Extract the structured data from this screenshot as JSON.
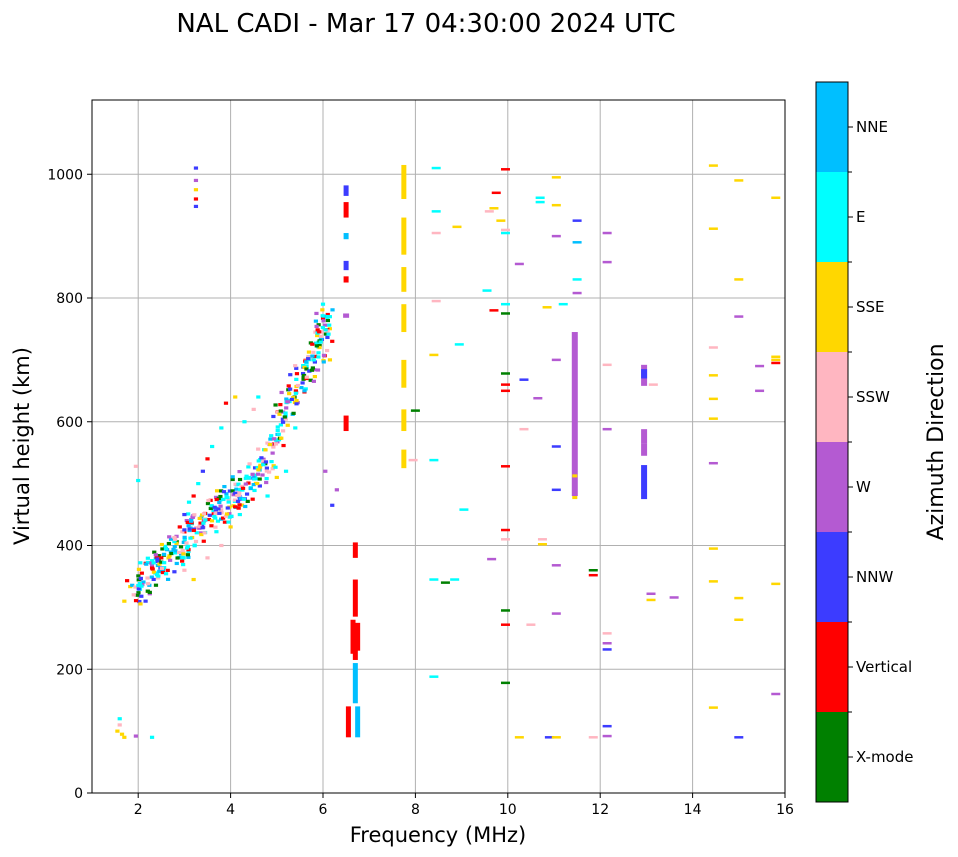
{
  "chart_data": {
    "type": "scatter",
    "title": "NAL CADI - Mar 17 04:30:00 2024 UTC",
    "xlabel": "Frequency (MHz)",
    "ylabel": "Virtual height (km)",
    "xlim": [
      1,
      16
    ],
    "ylim": [
      0,
      1120
    ],
    "xticks": [
      2,
      4,
      6,
      8,
      10,
      12,
      14,
      16
    ],
    "yticks": [
      0,
      200,
      400,
      600,
      800,
      1000
    ],
    "grid": true,
    "colorbar": {
      "label": "Azimuth Direction",
      "categories": [
        {
          "name": "X-mode",
          "color": "#008000"
        },
        {
          "name": "Vertical",
          "color": "#ff0000"
        },
        {
          "name": "NNW",
          "color": "#3c3cff"
        },
        {
          "name": "W",
          "color": "#b45ad2"
        },
        {
          "name": "SSW",
          "color": "#ffb6c1"
        },
        {
          "name": "SSE",
          "color": "#ffd700"
        },
        {
          "name": "E",
          "color": "#00ffff"
        },
        {
          "name": "NNE",
          "color": "#00bfff"
        }
      ]
    },
    "curve_trace": [
      {
        "x": 1.9,
        "y": 320
      },
      {
        "x": 2.1,
        "y": 340
      },
      {
        "x": 2.3,
        "y": 355
      },
      {
        "x": 2.5,
        "y": 370
      },
      {
        "x": 2.7,
        "y": 385
      },
      {
        "x": 2.9,
        "y": 400
      },
      {
        "x": 3.1,
        "y": 415
      },
      {
        "x": 3.3,
        "y": 430
      },
      {
        "x": 3.5,
        "y": 445
      },
      {
        "x": 3.7,
        "y": 455
      },
      {
        "x": 3.9,
        "y": 465
      },
      {
        "x": 4.1,
        "y": 480
      },
      {
        "x": 4.3,
        "y": 495
      },
      {
        "x": 4.5,
        "y": 510
      },
      {
        "x": 4.7,
        "y": 530
      },
      {
        "x": 4.9,
        "y": 560
      },
      {
        "x": 5.1,
        "y": 600
      },
      {
        "x": 5.3,
        "y": 640
      },
      {
        "x": 5.5,
        "y": 670
      },
      {
        "x": 5.7,
        "y": 690
      },
      {
        "x": 5.9,
        "y": 720
      },
      {
        "x": 6.0,
        "y": 750
      },
      {
        "x": 6.1,
        "y": 770
      }
    ],
    "points": [
      {
        "x": 1.55,
        "y": 100,
        "c": "SSE"
      },
      {
        "x": 1.6,
        "y": 110,
        "c": "SSW"
      },
      {
        "x": 1.6,
        "y": 120,
        "c": "E"
      },
      {
        "x": 1.65,
        "y": 95,
        "c": "SSE"
      },
      {
        "x": 1.7,
        "y": 90,
        "c": "SSE"
      },
      {
        "x": 1.95,
        "y": 92,
        "c": "W"
      },
      {
        "x": 2.3,
        "y": 90,
        "c": "E"
      },
      {
        "x": 1.7,
        "y": 310,
        "c": "SSE"
      },
      {
        "x": 2.0,
        "y": 505,
        "c": "E"
      },
      {
        "x": 1.95,
        "y": 528,
        "c": "SSW"
      },
      {
        "x": 3.25,
        "y": 1010,
        "c": "NNW"
      },
      {
        "x": 3.25,
        "y": 990,
        "c": "W"
      },
      {
        "x": 3.25,
        "y": 975,
        "c": "SSE"
      },
      {
        "x": 3.25,
        "y": 960,
        "c": "Vertical"
      },
      {
        "x": 3.25,
        "y": 948,
        "c": "NNW"
      },
      {
        "x": 2.5,
        "y": 380,
        "c": "Vertical"
      },
      {
        "x": 2.6,
        "y": 395,
        "c": "E"
      },
      {
        "x": 2.8,
        "y": 410,
        "c": "SSW"
      },
      {
        "x": 2.9,
        "y": 430,
        "c": "Vertical"
      },
      {
        "x": 3.0,
        "y": 450,
        "c": "NNW"
      },
      {
        "x": 3.1,
        "y": 470,
        "c": "E"
      },
      {
        "x": 3.2,
        "y": 480,
        "c": "Vertical"
      },
      {
        "x": 3.3,
        "y": 500,
        "c": "E"
      },
      {
        "x": 3.4,
        "y": 520,
        "c": "NNW"
      },
      {
        "x": 3.5,
        "y": 540,
        "c": "Vertical"
      },
      {
        "x": 3.6,
        "y": 560,
        "c": "E"
      },
      {
        "x": 3.8,
        "y": 590,
        "c": "E"
      },
      {
        "x": 3.9,
        "y": 630,
        "c": "Vertical"
      },
      {
        "x": 4.1,
        "y": 640,
        "c": "SSE"
      },
      {
        "x": 4.3,
        "y": 600,
        "c": "E"
      },
      {
        "x": 4.5,
        "y": 620,
        "c": "SSW"
      },
      {
        "x": 4.6,
        "y": 640,
        "c": "E"
      },
      {
        "x": 4.0,
        "y": 430,
        "c": "SSE"
      },
      {
        "x": 4.2,
        "y": 450,
        "c": "E"
      },
      {
        "x": 3.2,
        "y": 345,
        "c": "SSE"
      },
      {
        "x": 3.0,
        "y": 360,
        "c": "SSW"
      },
      {
        "x": 3.5,
        "y": 380,
        "c": "SSW"
      },
      {
        "x": 3.8,
        "y": 400,
        "c": "SSW"
      },
      {
        "x": 4.8,
        "y": 480,
        "c": "E"
      },
      {
        "x": 5.0,
        "y": 510,
        "c": "SSE"
      },
      {
        "x": 5.2,
        "y": 520,
        "c": "E"
      },
      {
        "x": 5.4,
        "y": 590,
        "c": "E"
      },
      {
        "x": 5.6,
        "y": 650,
        "c": "NNE"
      },
      {
        "x": 5.8,
        "y": 700,
        "c": "E"
      },
      {
        "x": 6.0,
        "y": 790,
        "c": "E"
      },
      {
        "x": 6.1,
        "y": 770,
        "c": "E"
      },
      {
        "x": 6.15,
        "y": 700,
        "c": "SSE"
      },
      {
        "x": 6.2,
        "y": 730,
        "c": "Vertical"
      },
      {
        "x": 6.2,
        "y": 465,
        "c": "NNW"
      },
      {
        "x": 6.3,
        "y": 490,
        "c": "W"
      },
      {
        "x": 6.05,
        "y": 520,
        "c": "W"
      },
      {
        "x": 8.45,
        "y": 1010,
        "c": "E"
      },
      {
        "x": 8.45,
        "y": 940,
        "c": "E"
      },
      {
        "x": 8.45,
        "y": 905,
        "c": "SSW"
      },
      {
        "x": 8.9,
        "y": 915,
        "c": "SSE"
      },
      {
        "x": 9.95,
        "y": 1008,
        "c": "Vertical"
      },
      {
        "x": 9.75,
        "y": 970,
        "c": "Vertical"
      },
      {
        "x": 9.6,
        "y": 940,
        "c": "SSW"
      },
      {
        "x": 9.7,
        "y": 945,
        "c": "SSE"
      },
      {
        "x": 9.85,
        "y": 925,
        "c": "SSE"
      },
      {
        "x": 9.95,
        "y": 905,
        "c": "E"
      },
      {
        "x": 9.95,
        "y": 910,
        "c": "SSW"
      },
      {
        "x": 10.25,
        "y": 855,
        "c": "W"
      },
      {
        "x": 10.7,
        "y": 962,
        "c": "E"
      },
      {
        "x": 10.7,
        "y": 955,
        "c": "E"
      },
      {
        "x": 11.05,
        "y": 995,
        "c": "SSE"
      },
      {
        "x": 11.05,
        "y": 950,
        "c": "SSE"
      },
      {
        "x": 11.05,
        "y": 900,
        "c": "W"
      },
      {
        "x": 11.5,
        "y": 925,
        "c": "NNW"
      },
      {
        "x": 11.5,
        "y": 890,
        "c": "NNE"
      },
      {
        "x": 11.5,
        "y": 830,
        "c": "E"
      },
      {
        "x": 11.5,
        "y": 808,
        "c": "W"
      },
      {
        "x": 11.2,
        "y": 790,
        "c": "E"
      },
      {
        "x": 10.85,
        "y": 785,
        "c": "SSE"
      },
      {
        "x": 9.95,
        "y": 790,
        "c": "E"
      },
      {
        "x": 9.95,
        "y": 775,
        "c": "X-mode"
      },
      {
        "x": 9.7,
        "y": 780,
        "c": "Vertical"
      },
      {
        "x": 9.55,
        "y": 812,
        "c": "E"
      },
      {
        "x": 8.95,
        "y": 725,
        "c": "E"
      },
      {
        "x": 8.45,
        "y": 795,
        "c": "SSW"
      },
      {
        "x": 8.4,
        "y": 708,
        "c": "SSE"
      },
      {
        "x": 8.0,
        "y": 618,
        "c": "X-mode"
      },
      {
        "x": 7.95,
        "y": 538,
        "c": "SSW"
      },
      {
        "x": 8.4,
        "y": 538,
        "c": "E"
      },
      {
        "x": 9.95,
        "y": 678,
        "c": "X-mode"
      },
      {
        "x": 9.95,
        "y": 660,
        "c": "Vertical"
      },
      {
        "x": 9.95,
        "y": 650,
        "c": "Vertical"
      },
      {
        "x": 10.35,
        "y": 668,
        "c": "NNW"
      },
      {
        "x": 10.65,
        "y": 638,
        "c": "W"
      },
      {
        "x": 11.05,
        "y": 700,
        "c": "W"
      },
      {
        "x": 12.15,
        "y": 905,
        "c": "W"
      },
      {
        "x": 12.15,
        "y": 858,
        "c": "W"
      },
      {
        "x": 12.15,
        "y": 692,
        "c": "SSW"
      },
      {
        "x": 12.15,
        "y": 588,
        "c": "W"
      },
      {
        "x": 10.35,
        "y": 588,
        "c": "SSW"
      },
      {
        "x": 9.95,
        "y": 528,
        "c": "Vertical"
      },
      {
        "x": 11.05,
        "y": 560,
        "c": "NNW"
      },
      {
        "x": 11.05,
        "y": 490,
        "c": "NNW"
      },
      {
        "x": 9.05,
        "y": 458,
        "c": "E"
      },
      {
        "x": 9.95,
        "y": 425,
        "c": "Vertical"
      },
      {
        "x": 9.95,
        "y": 410,
        "c": "SSW"
      },
      {
        "x": 10.75,
        "y": 410,
        "c": "SSW"
      },
      {
        "x": 10.75,
        "y": 402,
        "c": "SSE"
      },
      {
        "x": 9.65,
        "y": 378,
        "c": "W"
      },
      {
        "x": 11.05,
        "y": 368,
        "c": "W"
      },
      {
        "x": 11.85,
        "y": 360,
        "c": "X-mode"
      },
      {
        "x": 11.85,
        "y": 352,
        "c": "Vertical"
      },
      {
        "x": 8.4,
        "y": 345,
        "c": "E"
      },
      {
        "x": 8.65,
        "y": 340,
        "c": "X-mode"
      },
      {
        "x": 8.85,
        "y": 345,
        "c": "E"
      },
      {
        "x": 9.95,
        "y": 295,
        "c": "X-mode"
      },
      {
        "x": 9.95,
        "y": 272,
        "c": "Vertical"
      },
      {
        "x": 10.5,
        "y": 272,
        "c": "SSW"
      },
      {
        "x": 11.05,
        "y": 290,
        "c": "W"
      },
      {
        "x": 12.15,
        "y": 258,
        "c": "SSW"
      },
      {
        "x": 12.15,
        "y": 242,
        "c": "W"
      },
      {
        "x": 12.15,
        "y": 232,
        "c": "NNW"
      },
      {
        "x": 8.4,
        "y": 188,
        "c": "E"
      },
      {
        "x": 9.95,
        "y": 178,
        "c": "X-mode"
      },
      {
        "x": 10.25,
        "y": 90,
        "c": "SSE"
      },
      {
        "x": 10.9,
        "y": 90,
        "c": "NNW"
      },
      {
        "x": 11.05,
        "y": 90,
        "c": "SSE"
      },
      {
        "x": 11.85,
        "y": 90,
        "c": "SSW"
      },
      {
        "x": 12.15,
        "y": 108,
        "c": "NNW"
      },
      {
        "x": 12.15,
        "y": 92,
        "c": "W"
      },
      {
        "x": 13.15,
        "y": 660,
        "c": "SSW"
      },
      {
        "x": 13.1,
        "y": 322,
        "c": "W"
      },
      {
        "x": 13.1,
        "y": 312,
        "c": "SSE"
      },
      {
        "x": 13.6,
        "y": 316,
        "c": "W"
      },
      {
        "x": 14.45,
        "y": 1014,
        "c": "SSE"
      },
      {
        "x": 14.45,
        "y": 912,
        "c": "SSE"
      },
      {
        "x": 14.45,
        "y": 720,
        "c": "SSW"
      },
      {
        "x": 14.45,
        "y": 675,
        "c": "SSE"
      },
      {
        "x": 14.45,
        "y": 637,
        "c": "SSE"
      },
      {
        "x": 14.45,
        "y": 605,
        "c": "SSE"
      },
      {
        "x": 14.45,
        "y": 533,
        "c": "W"
      },
      {
        "x": 14.45,
        "y": 395,
        "c": "SSE"
      },
      {
        "x": 14.45,
        "y": 342,
        "c": "SSE"
      },
      {
        "x": 14.45,
        "y": 138,
        "c": "SSE"
      },
      {
        "x": 15.0,
        "y": 990,
        "c": "SSE"
      },
      {
        "x": 15.0,
        "y": 830,
        "c": "SSE"
      },
      {
        "x": 15.0,
        "y": 770,
        "c": "W"
      },
      {
        "x": 15.0,
        "y": 315,
        "c": "SSE"
      },
      {
        "x": 15.0,
        "y": 280,
        "c": "SSE"
      },
      {
        "x": 15.0,
        "y": 90,
        "c": "NNW"
      },
      {
        "x": 15.45,
        "y": 690,
        "c": "W"
      },
      {
        "x": 15.45,
        "y": 650,
        "c": "W"
      },
      {
        "x": 15.8,
        "y": 962,
        "c": "SSE"
      },
      {
        "x": 15.8,
        "y": 705,
        "c": "SSE"
      },
      {
        "x": 15.8,
        "y": 700,
        "c": "SSE"
      },
      {
        "x": 15.8,
        "y": 695,
        "c": "Vertical"
      },
      {
        "x": 15.8,
        "y": 338,
        "c": "SSE"
      },
      {
        "x": 15.8,
        "y": 160,
        "c": "W"
      }
    ],
    "streaks": [
      {
        "x": 6.55,
        "y0": 90,
        "y1": 140,
        "c": "Vertical"
      },
      {
        "x": 6.75,
        "y0": 90,
        "y1": 140,
        "c": "NNE"
      },
      {
        "x": 6.7,
        "y0": 145,
        "y1": 210,
        "c": "NNE"
      },
      {
        "x": 6.7,
        "y0": 215,
        "y1": 240,
        "c": "Vertical"
      },
      {
        "x": 6.65,
        "y0": 225,
        "y1": 280,
        "c": "Vertical"
      },
      {
        "x": 6.75,
        "y0": 230,
        "y1": 275,
        "c": "Vertical"
      },
      {
        "x": 6.7,
        "y0": 285,
        "y1": 345,
        "c": "Vertical"
      },
      {
        "x": 6.7,
        "y0": 380,
        "y1": 405,
        "c": "Vertical"
      },
      {
        "x": 6.5,
        "y0": 585,
        "y1": 610,
        "c": "Vertical"
      },
      {
        "x": 6.5,
        "y0": 768,
        "y1": 775,
        "c": "W"
      },
      {
        "x": 6.5,
        "y0": 825,
        "y1": 835,
        "c": "Vertical"
      },
      {
        "x": 6.5,
        "y0": 845,
        "y1": 860,
        "c": "NNW"
      },
      {
        "x": 6.5,
        "y0": 895,
        "y1": 905,
        "c": "NNE"
      },
      {
        "x": 6.5,
        "y0": 930,
        "y1": 955,
        "c": "Vertical"
      },
      {
        "x": 6.5,
        "y0": 965,
        "y1": 982,
        "c": "NNW"
      },
      {
        "x": 7.75,
        "y0": 525,
        "y1": 555,
        "c": "SSE"
      },
      {
        "x": 7.75,
        "y0": 585,
        "y1": 620,
        "c": "SSE"
      },
      {
        "x": 7.75,
        "y0": 655,
        "y1": 700,
        "c": "SSE"
      },
      {
        "x": 7.75,
        "y0": 745,
        "y1": 790,
        "c": "SSE"
      },
      {
        "x": 7.75,
        "y0": 810,
        "y1": 850,
        "c": "SSE"
      },
      {
        "x": 7.75,
        "y0": 870,
        "y1": 930,
        "c": "SSE"
      },
      {
        "x": 7.75,
        "y0": 960,
        "y1": 1015,
        "c": "SSE"
      },
      {
        "x": 11.45,
        "y0": 480,
        "y1": 745,
        "c": "W"
      },
      {
        "x": 11.45,
        "y0": 475,
        "y1": 480,
        "c": "SSE"
      },
      {
        "x": 11.45,
        "y0": 510,
        "y1": 515,
        "c": "SSE"
      },
      {
        "x": 12.95,
        "y0": 475,
        "y1": 530,
        "c": "NNW"
      },
      {
        "x": 12.95,
        "y0": 545,
        "y1": 565,
        "c": "W"
      },
      {
        "x": 12.95,
        "y0": 565,
        "y1": 588,
        "c": "W"
      },
      {
        "x": 12.95,
        "y0": 658,
        "y1": 692,
        "c": "W"
      },
      {
        "x": 12.95,
        "y0": 670,
        "y1": 685,
        "c": "NNW"
      }
    ]
  }
}
